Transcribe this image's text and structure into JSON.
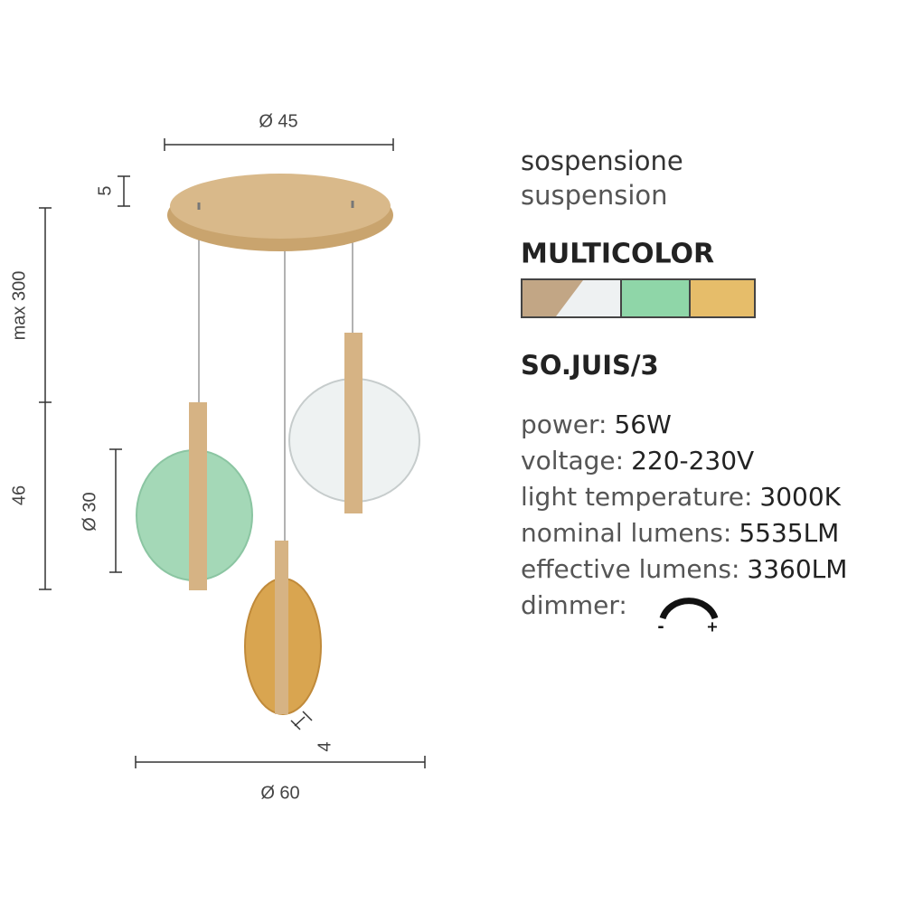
{
  "dimensions": {
    "canopy_diameter": "Ø 45",
    "canopy_height": "5",
    "max_height": "max 300",
    "lamp_height": "46",
    "disc_diameter": "Ø 30",
    "disc_depth": "4",
    "overall_diameter": "Ø 60"
  },
  "product": {
    "category_it": "sospensione",
    "category_en": "suspension",
    "finish": "MULTICOLOR",
    "code": "SO.JUIS/3",
    "specs": [
      {
        "label": "power:",
        "value": "56W"
      },
      {
        "label": "voltage:",
        "value": "220-230V"
      },
      {
        "label": "light temperature:",
        "value": "3000K"
      },
      {
        "label": "nominal lumens:",
        "value": "5535LM"
      },
      {
        "label": "effective lumens:",
        "value": "3360LM"
      }
    ],
    "dimmer": {
      "label": "dimmer:",
      "minus": "-",
      "plus": "+"
    }
  }
}
